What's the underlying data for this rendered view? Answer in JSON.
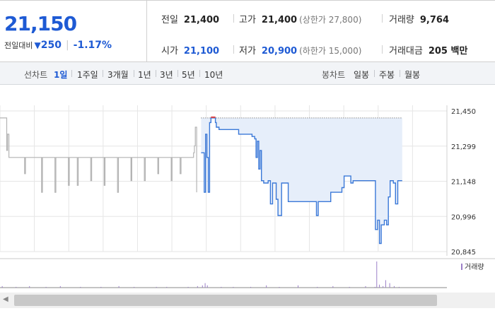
{
  "quote": {
    "current_price": "21,150",
    "change_label": "전일대비",
    "change_arrow": "▼",
    "change_value": "250",
    "change_pct": "-1.17%",
    "prev_close": {
      "label": "전일",
      "value": "21,400"
    },
    "high": {
      "label": "고가",
      "value": "21,400",
      "limit": "(상한가 27,800)"
    },
    "volume": {
      "label": "거래량",
      "value": "9,764"
    },
    "open": {
      "label": "시가",
      "value": "21,100"
    },
    "low": {
      "label": "저가",
      "value": "20,900",
      "limit": "(하한가 15,000)"
    },
    "turnover": {
      "label": "거래대금",
      "value": "205 백만"
    }
  },
  "period_bar": {
    "line_label": "선차트",
    "line_items": [
      "1일",
      "1주일",
      "3개월",
      "1년",
      "3년",
      "5년",
      "10년"
    ],
    "active": "1일",
    "candle_label": "봉차트",
    "candle_items": [
      "일봉",
      "주봉",
      "월봉"
    ]
  },
  "colors": {
    "accent": "#1e5ad4",
    "line_today": "#3a78d8",
    "line_prev": "#b4b4b4",
    "fill": "#e6eefa",
    "high_marker": "#e04040",
    "volume_bar": "#9b7fc8"
  },
  "chart_data": {
    "type": "line",
    "y_ticks": [
      "21,450",
      "21,299",
      "21,148",
      "20,996",
      "20,845"
    ],
    "ylim": [
      20845,
      21450
    ],
    "x_range": [
      0,
      100
    ],
    "grid": true,
    "prev_day_series": {
      "x": [
        0,
        1.1,
        1.5,
        1.7,
        2.0,
        2.3,
        3.0,
        4.2,
        5.0,
        5.5,
        5.7,
        6.0,
        9.0,
        9.3,
        9.5,
        9.7,
        12.0,
        12.3,
        12.5,
        12.7,
        15.0,
        15.3,
        15.5,
        15.7,
        17.0,
        17.3,
        17.5,
        17.7,
        20.0,
        20.3,
        20.5,
        20.7,
        23.0,
        23.3,
        23.5,
        23.7,
        26.0,
        26.3,
        26.5,
        26.7,
        29.0,
        29.3,
        29.5,
        29.7,
        32.0,
        32.3,
        32.5,
        32.7,
        35.0,
        35.3,
        35.5,
        35.7,
        38.0,
        38.3,
        38.5,
        38.7,
        40.0,
        40.3,
        40.5,
        40.7,
        43.0,
        43.3,
        43.5,
        43.7,
        44.0
      ],
      "y": [
        21420,
        21420,
        21280,
        21350,
        21250,
        21250,
        21250,
        21250,
        21250,
        21180,
        21250,
        21250,
        21250,
        21100,
        21250,
        21250,
        21250,
        21100,
        21250,
        21250,
        21250,
        21130,
        21250,
        21250,
        21250,
        21130,
        21250,
        21250,
        21250,
        21150,
        21250,
        21250,
        21250,
        21130,
        21250,
        21250,
        21250,
        21100,
        21250,
        21250,
        21250,
        21150,
        21250,
        21250,
        21250,
        21150,
        21250,
        21250,
        21250,
        21180,
        21250,
        21250,
        21250,
        21150,
        21250,
        21250,
        21250,
        21180,
        21250,
        21250,
        21250,
        21270,
        21300,
        21380,
        21100
      ]
    },
    "today_series": {
      "x": [
        45,
        45.7,
        46.0,
        46.3,
        46.6,
        46.9,
        47.2,
        47.8,
        48.2,
        48.4,
        49.0,
        53.0,
        53.4,
        56.0,
        56.4,
        57.0,
        57.3,
        57.6,
        57.9,
        58.2,
        58.5,
        59.0,
        60.0,
        60.5,
        61.0,
        61.4,
        61.8,
        62.2,
        63.0,
        64.0,
        64.5,
        66.0,
        70.0,
        70.4,
        70.8,
        71.2,
        73.0,
        74.0,
        74.5,
        76.5,
        77.0,
        78.5,
        79.0,
        83.0,
        84.0,
        84.5,
        84.9,
        85.3,
        86.0,
        86.5,
        86.9,
        87.3,
        88.0,
        88.5,
        89.0,
        90.0
      ],
      "y": [
        21270,
        21100,
        21350,
        21250,
        21100,
        21400,
        21420,
        21420,
        21400,
        21380,
        21370,
        21370,
        21350,
        21350,
        21340,
        21330,
        21250,
        21320,
        21200,
        21280,
        21150,
        21140,
        21150,
        21050,
        21140,
        21140,
        21070,
        21000,
        21140,
        21140,
        21060,
        21060,
        21060,
        21060,
        21000,
        21060,
        21060,
        21100,
        21100,
        21120,
        21170,
        21140,
        21150,
        21150,
        20940,
        20980,
        20880,
        20960,
        20980,
        20960,
        21080,
        21150,
        21140,
        21050,
        21150,
        21150
      ]
    },
    "reference_level": 21420,
    "volume_legend": "거래량",
    "volume_bars": {
      "x": [
        0.5,
        3.6,
        6.6,
        10.3,
        13.5,
        18,
        22.6,
        26.6,
        30,
        35,
        37.3,
        42.1,
        44.2,
        45.3,
        45.9,
        46.4,
        49.5,
        52.2,
        56.1,
        59.6,
        62.5,
        66.7,
        71,
        74.5,
        78.2,
        81.8,
        83.9,
        84.3,
        84.9,
        85.7,
        86.3,
        87.2,
        88.2,
        89.3
      ],
      "volume": [
        2,
        1,
        2,
        1,
        2,
        1,
        1,
        2,
        1,
        1,
        1,
        1,
        2,
        3,
        6,
        3,
        1,
        1,
        1,
        3,
        1,
        3,
        1,
        2,
        1,
        2,
        1,
        35,
        4,
        2,
        10,
        6,
        2,
        1
      ]
    }
  }
}
